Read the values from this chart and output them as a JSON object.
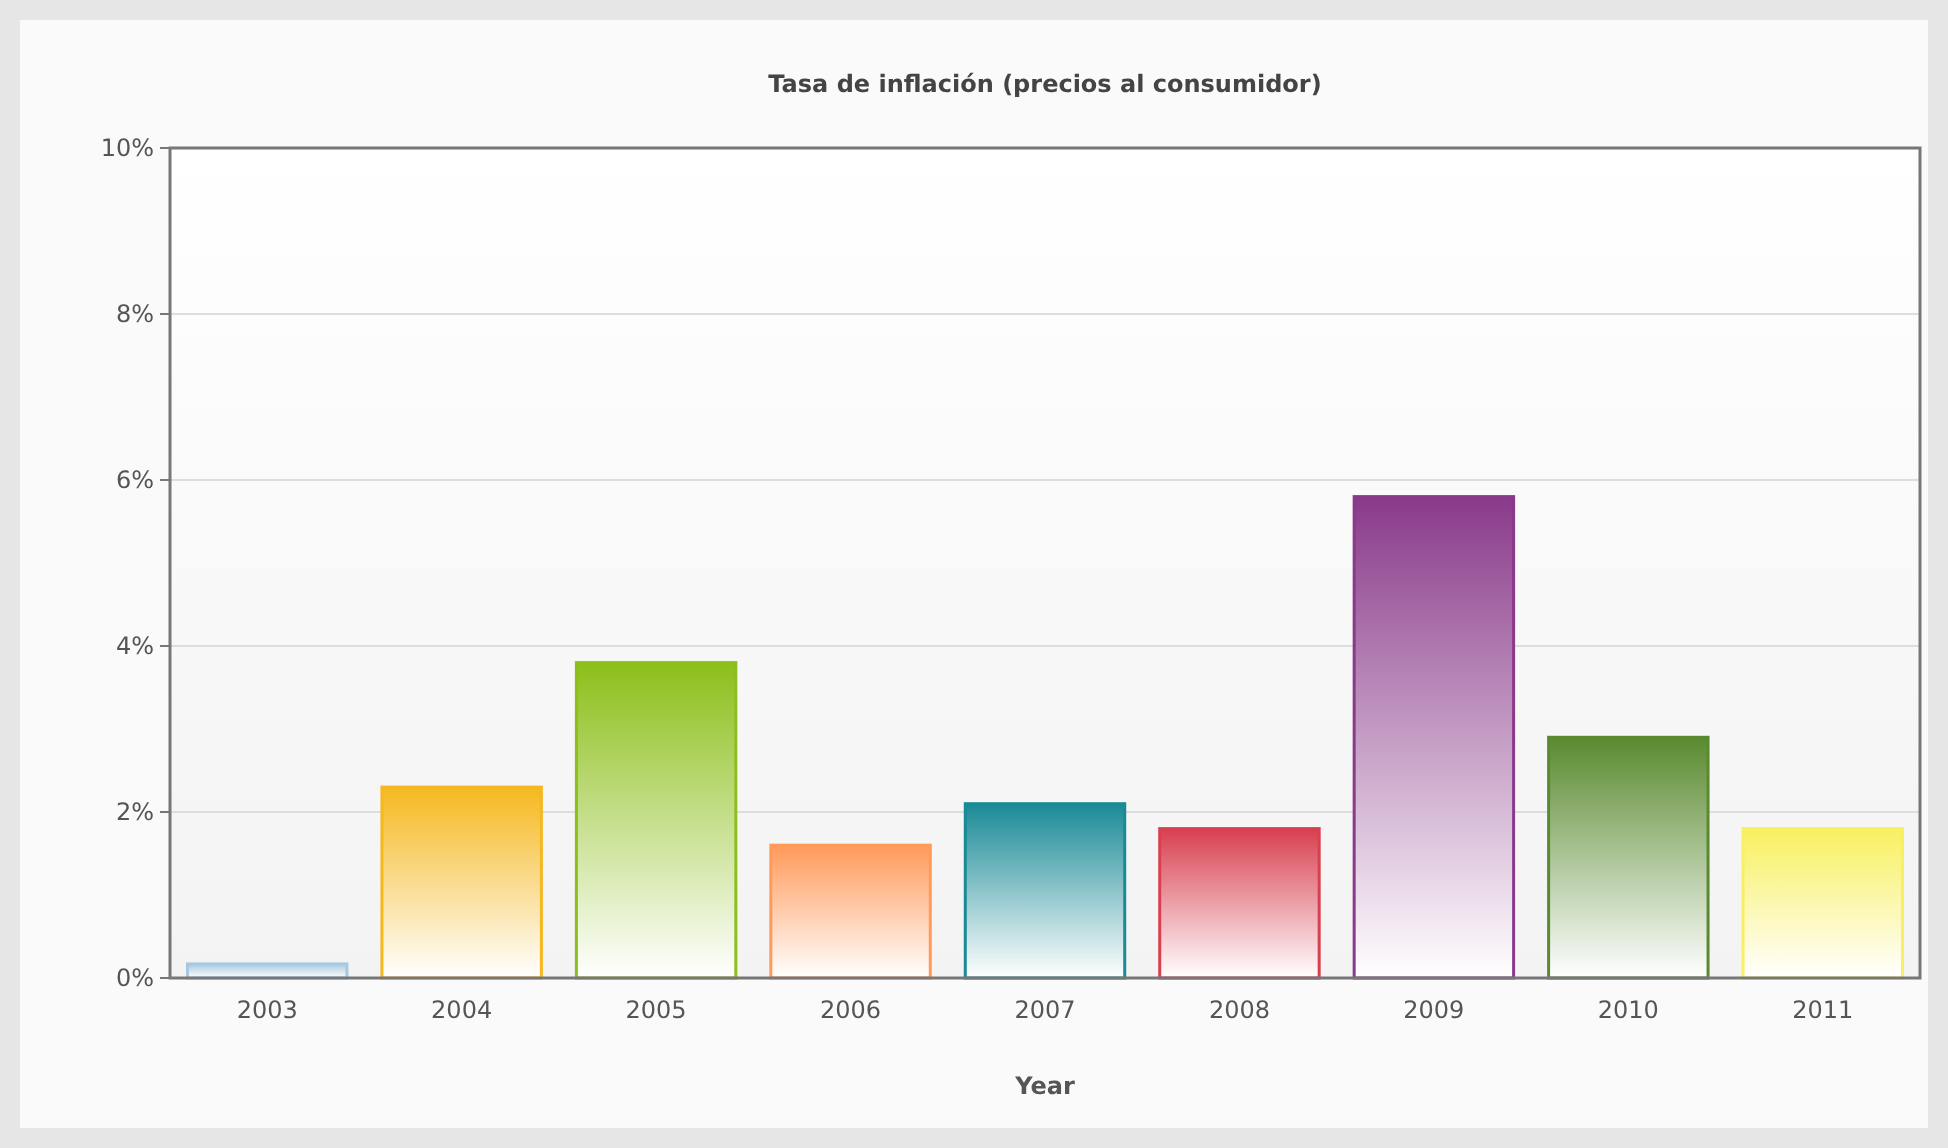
{
  "chart_data": {
    "type": "bar",
    "title": "Tasa de inflación (precios al consumidor)",
    "xlabel": "Year",
    "categories": [
      "2003",
      "2004",
      "2005",
      "2006",
      "2007",
      "2008",
      "2009",
      "2010",
      "2011"
    ],
    "values": [
      0.17,
      2.3,
      3.8,
      1.6,
      2.1,
      1.8,
      5.8,
      2.9,
      1.8
    ],
    "colors": [
      "#a8c8e0",
      "#f5b820",
      "#8cbf1a",
      "#ff9a5a",
      "#1a8a96",
      "#d84050",
      "#8a3a8a",
      "#5a8a30",
      "#f8f060"
    ],
    "ylim": [
      0,
      10
    ],
    "yticks": [
      {
        "value": 0,
        "label": "0%"
      },
      {
        "value": 2,
        "label": "2%"
      },
      {
        "value": 4,
        "label": "4%"
      },
      {
        "value": 6,
        "label": "6%"
      },
      {
        "value": 8,
        "label": "8%"
      },
      {
        "value": 10,
        "label": "10%"
      }
    ],
    "grid": "y"
  }
}
